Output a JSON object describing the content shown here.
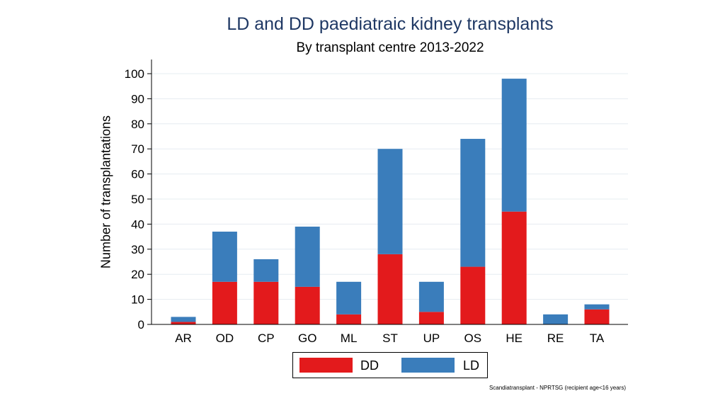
{
  "chart_data": {
    "type": "bar",
    "stacked": true,
    "title": "LD and DD paediatraic kidney transplants",
    "subtitle": "By transplant centre 2013-2022",
    "xlabel": "",
    "ylabel": "Number of transplantations",
    "ylim": [
      0,
      100
    ],
    "yticks": [
      "0",
      "10",
      "20",
      "30",
      "40",
      "50",
      "60",
      "70",
      "80",
      "90",
      "100"
    ],
    "categories": [
      "AR",
      "OD",
      "CP",
      "GO",
      "ML",
      "ST",
      "UP",
      "OS",
      "HE",
      "RE",
      "TA"
    ],
    "series": [
      {
        "name": "DD",
        "color": "#e31a1c",
        "values": [
          1,
          17,
          17,
          15,
          4,
          28,
          5,
          23,
          45,
          0,
          6
        ]
      },
      {
        "name": "LD",
        "color": "#3a7dbb",
        "values": [
          2,
          20,
          9,
          24,
          13,
          42,
          12,
          51,
          53,
          4,
          2
        ]
      }
    ],
    "legend": {
      "position": "bottom-center",
      "items": [
        "DD",
        "LD"
      ]
    },
    "grid": true
  },
  "source_note": "Scandiatransplant - NPRTSG (recipient age<16 years)"
}
